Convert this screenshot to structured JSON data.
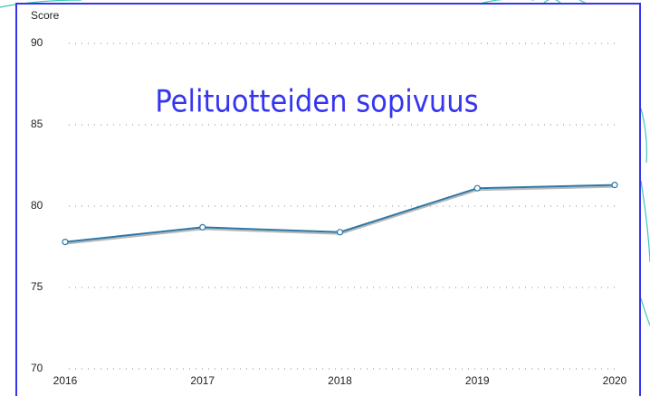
{
  "chart_data": {
    "type": "line",
    "title": "Pelituotteiden sopivuus",
    "y_label": "Score",
    "categories": [
      "2016",
      "2017",
      "2018",
      "2019",
      "2020"
    ],
    "values": [
      77.8,
      78.7,
      78.4,
      81.1,
      81.3
    ],
    "color": "#2a78a6",
    "ylim": [
      70,
      90
    ],
    "yticks": [
      70,
      75,
      80,
      85,
      90
    ],
    "grid": true
  }
}
